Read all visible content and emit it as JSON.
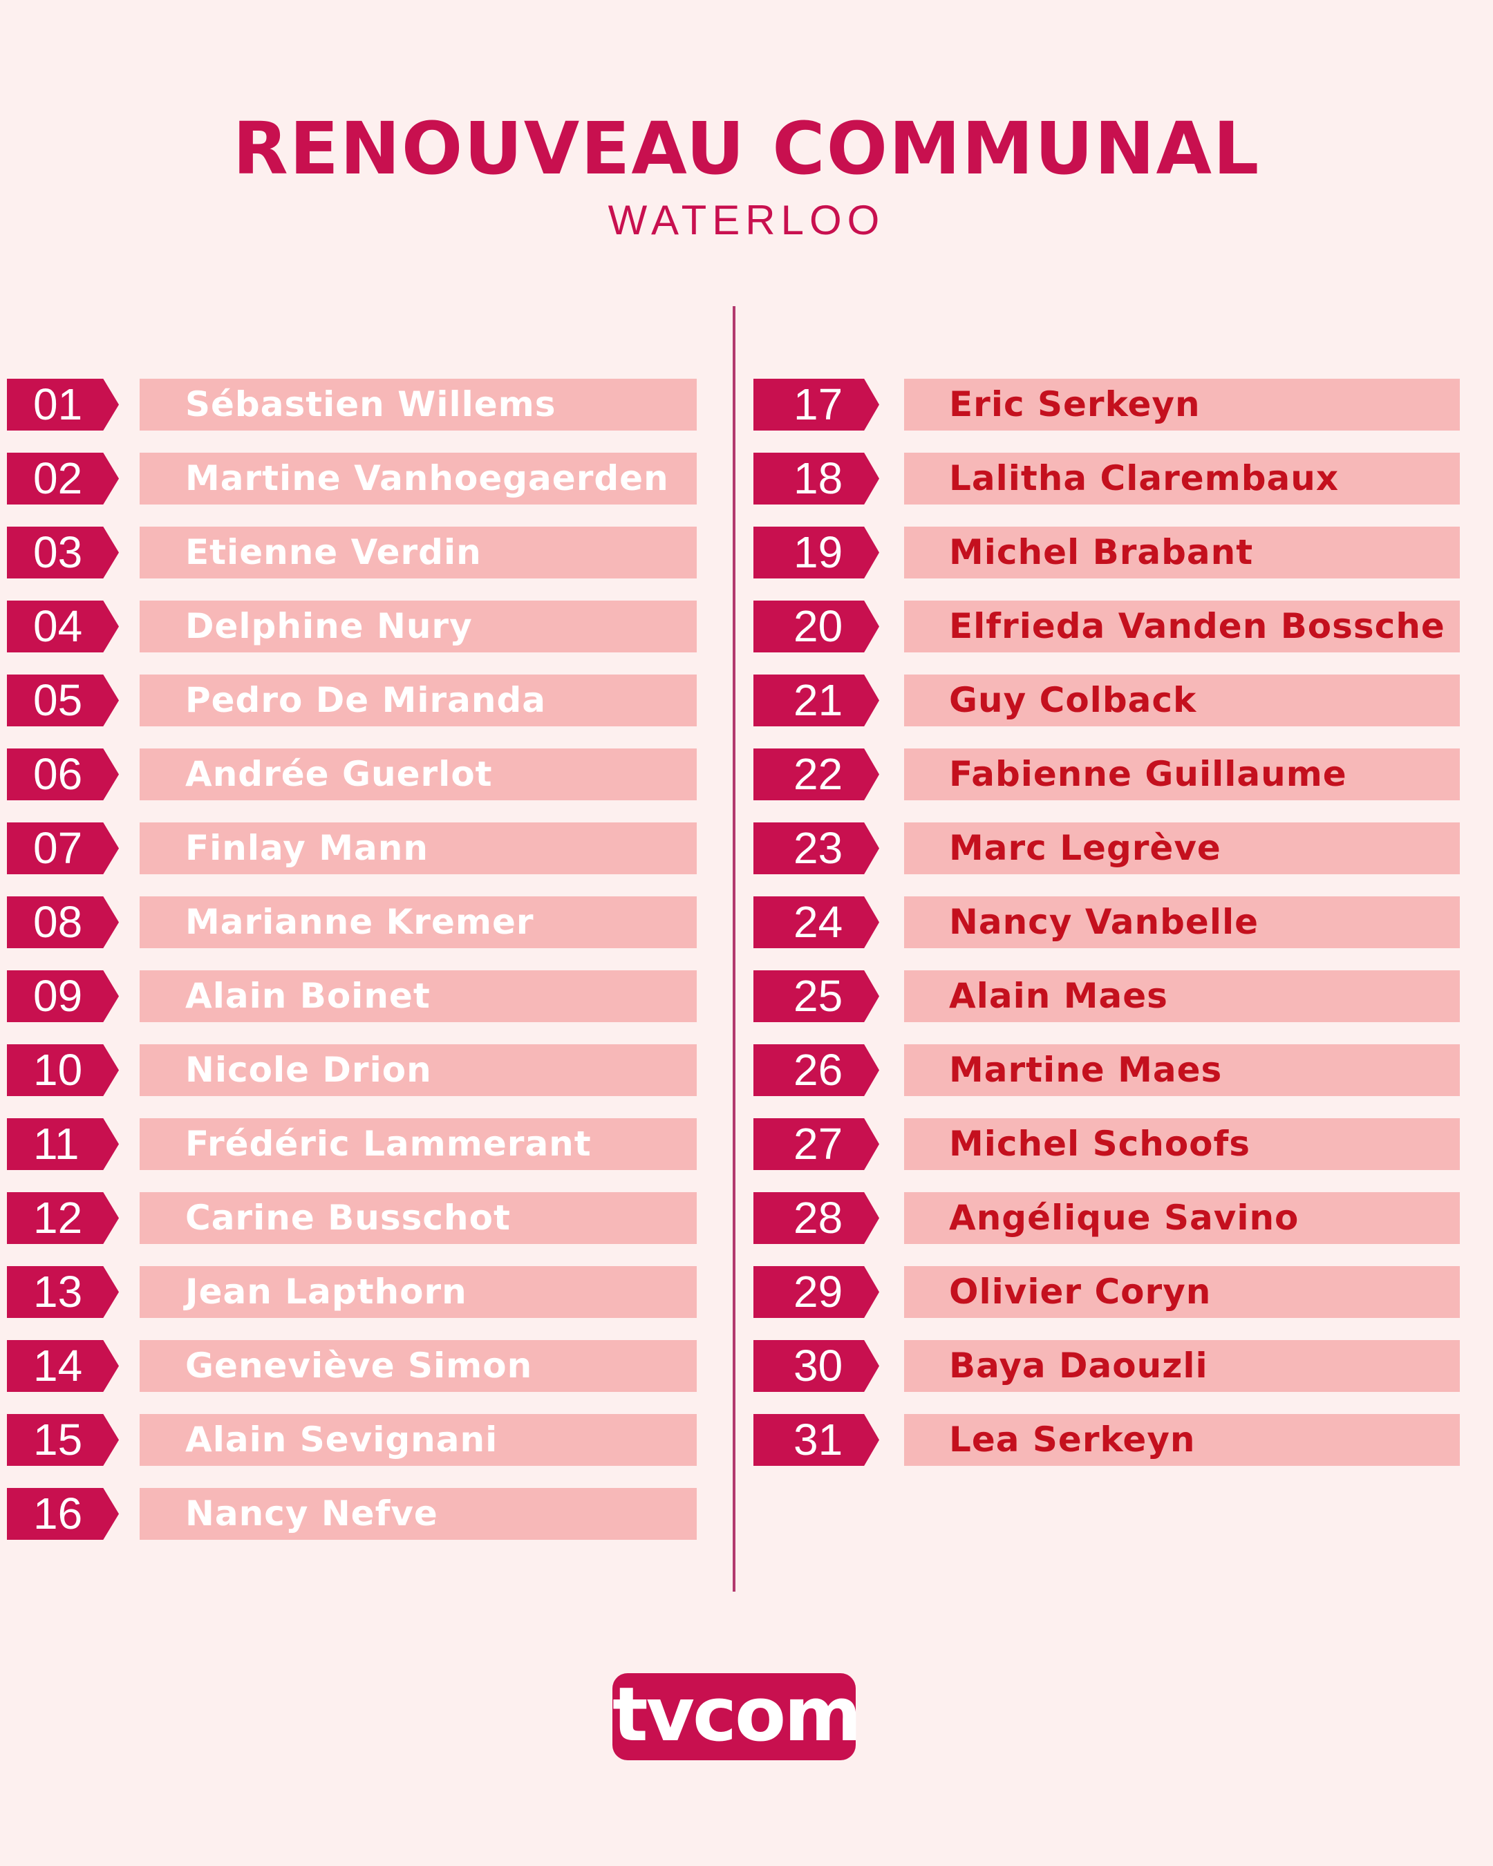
{
  "header": {
    "title": "RENOUVEAU COMMUNAL",
    "subtitle": "WATERLOO"
  },
  "colors": {
    "accent": "#c8104f",
    "bar_background": "#f7b8b8",
    "right_name_color": "#c4101e",
    "page_background": "#fdf0ef"
  },
  "candidates_left": [
    {
      "num": "01",
      "name": "Sébastien Willems"
    },
    {
      "num": "02",
      "name": "Martine Vanhoegaerden"
    },
    {
      "num": "03",
      "name": "Etienne Verdin"
    },
    {
      "num": "04",
      "name": "Delphine Nury"
    },
    {
      "num": "05",
      "name": "Pedro De Miranda"
    },
    {
      "num": "06",
      "name": "Andrée Guerlot"
    },
    {
      "num": "07",
      "name": "Finlay Mann"
    },
    {
      "num": "08",
      "name": "Marianne Kremer"
    },
    {
      "num": "09",
      "name": "Alain Boinet"
    },
    {
      "num": "10",
      "name": "Nicole Drion"
    },
    {
      "num": "11",
      "name": "Frédéric Lammerant"
    },
    {
      "num": "12",
      "name": "Carine Busschot"
    },
    {
      "num": "13",
      "name": "Jean Lapthorn"
    },
    {
      "num": "14",
      "name": "Geneviève Simon"
    },
    {
      "num": "15",
      "name": "Alain Sevignani"
    },
    {
      "num": "16",
      "name": "Nancy Nefve"
    }
  ],
  "candidates_right": [
    {
      "num": "17",
      "name": "Eric Serkeyn"
    },
    {
      "num": "18",
      "name": "Lalitha Clarembaux"
    },
    {
      "num": "19",
      "name": "Michel Brabant"
    },
    {
      "num": "20",
      "name": "Elfrieda Vanden Bossche"
    },
    {
      "num": "21",
      "name": "Guy Colback"
    },
    {
      "num": "22",
      "name": "Fabienne Guillaume"
    },
    {
      "num": "23",
      "name": "Marc Legrève"
    },
    {
      "num": "24",
      "name": "Nancy Vanbelle"
    },
    {
      "num": "25",
      "name": "Alain Maes"
    },
    {
      "num": "26",
      "name": "Martine Maes"
    },
    {
      "num": "27",
      "name": "Michel Schoofs"
    },
    {
      "num": "28",
      "name": "Angélique Savino"
    },
    {
      "num": "29",
      "name": "Olivier Coryn"
    },
    {
      "num": "30",
      "name": "Baya Daouzli"
    },
    {
      "num": "31",
      "name": "Lea Serkeyn"
    }
  ],
  "footer": {
    "logo_text": "tvcom"
  }
}
